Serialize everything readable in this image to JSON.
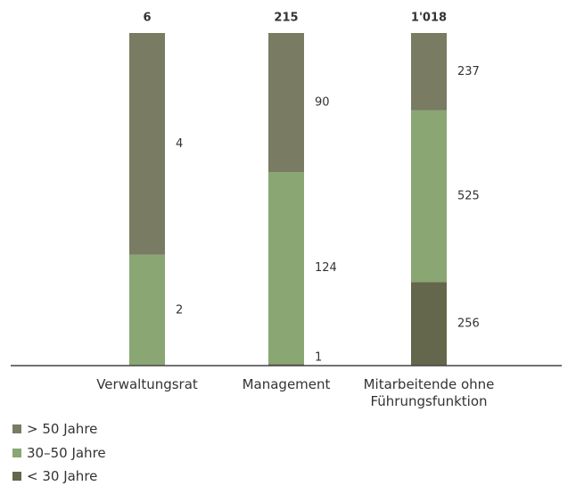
{
  "chart_data": {
    "type": "stacked100_bar",
    "categories": [
      "Verwaltungsrat",
      "Management",
      "Mitarbeitende ohne Führungsfunktion"
    ],
    "totals": [
      6,
      215,
      1018
    ],
    "totals_labels": [
      "6",
      "215",
      "1'018"
    ],
    "series": [
      {
        "name": "> 50 Jahre",
        "color": "#7a7b63",
        "values": [
          4,
          90,
          237
        ]
      },
      {
        "name": "30–50 Jahre",
        "color": "#8aa673",
        "values": [
          2,
          124,
          525
        ]
      },
      {
        "name": "< 30 Jahre",
        "color": "#64674b",
        "values": [
          null,
          1,
          256
        ]
      }
    ]
  }
}
